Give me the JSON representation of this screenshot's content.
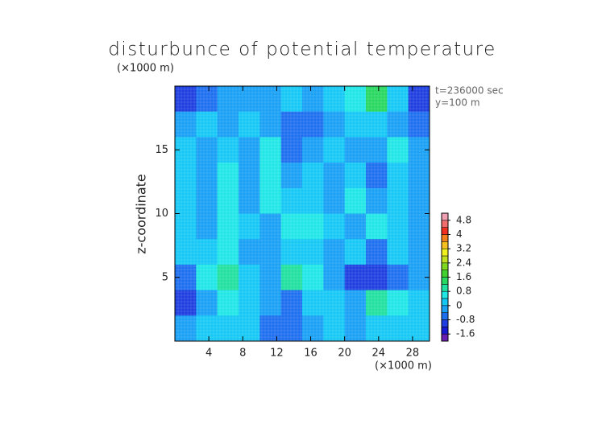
{
  "chart_data": {
    "type": "contour",
    "title": "disturbunce of potential temperature",
    "y_unit": "(×1000 m)",
    "x_unit": "(×1000 m)",
    "ylabel": "z-coordinate",
    "annotations": [
      "t=236000 sec",
      "y=100 m"
    ],
    "xlim": [
      0,
      30
    ],
    "ylim": [
      0,
      20
    ],
    "xticks": [
      4,
      8,
      12,
      16,
      20,
      24,
      28
    ],
    "yticks": [
      5,
      10,
      15
    ],
    "x": [
      1.25,
      3.75,
      6.25,
      8.75,
      11.25,
      13.75,
      16.25,
      18.75,
      21.25,
      23.75,
      26.25,
      28.75
    ],
    "y": [
      19,
      17,
      15,
      13,
      11,
      9,
      7,
      5,
      3,
      1
    ],
    "z": [
      [
        -0.9,
        -0.5,
        -0.3,
        -0.4,
        -0.3,
        0.2,
        -0.2,
        0.3,
        0.6,
        1.3,
        0.3,
        -0.9
      ],
      [
        -0.3,
        0.3,
        -0.3,
        0.2,
        -0.4,
        -0.5,
        -0.6,
        -0.3,
        0.3,
        0.2,
        -0.3,
        -0.5
      ],
      [
        0.2,
        -0.4,
        0.3,
        -0.3,
        0.4,
        -0.5,
        -0.3,
        0.3,
        -0.4,
        -0.2,
        0.4,
        -0.4
      ],
      [
        0.2,
        -0.4,
        0.4,
        -0.2,
        0.5,
        -0.4,
        0.3,
        -0.4,
        0.3,
        -0.5,
        0.3,
        -0.3
      ],
      [
        0.3,
        -0.3,
        0.5,
        -0.2,
        0.4,
        0.2,
        0.3,
        -0.3,
        0.5,
        -0.3,
        0.2,
        -0.3
      ],
      [
        0.2,
        -0.3,
        0.4,
        0.3,
        -0.2,
        0.4,
        0.5,
        0.3,
        -0.3,
        0.4,
        0.2,
        -0.2
      ],
      [
        0.3,
        0.3,
        0.4,
        -0.3,
        -0.4,
        0.3,
        0.3,
        -0.4,
        0.2,
        -0.5,
        0.3,
        -0.2
      ],
      [
        -0.6,
        0.4,
        0.9,
        0.3,
        -0.3,
        0.8,
        0.6,
        -0.3,
        -0.9,
        -1.2,
        -0.5,
        -0.2
      ],
      [
        -1.0,
        -0.4,
        0.4,
        0.3,
        -0.4,
        -0.5,
        0.3,
        0.2,
        -0.3,
        0.9,
        0.4,
        0.0
      ],
      [
        -0.3,
        0.2,
        0.3,
        0.1,
        -0.6,
        -0.7,
        -0.3,
        0.2,
        -0.3,
        0.3,
        0.2,
        0.2
      ]
    ],
    "colorbar": {
      "levels": [
        -2.0,
        -1.6,
        -1.2,
        -0.8,
        -0.4,
        0,
        0.4,
        0.8,
        1.2,
        1.6,
        2.0,
        2.4,
        2.8,
        3.2,
        3.6,
        4.0,
        4.4,
        4.8,
        5.2
      ],
      "colors": [
        "#6a1fb0",
        "#1a1ad0",
        "#1f3fe0",
        "#1e6ff0",
        "#1aa0f5",
        "#16c8f5",
        "#20e6e6",
        "#22e0a0",
        "#2ad860",
        "#40d030",
        "#80d820",
        "#c0e020",
        "#f0f020",
        "#f5c020",
        "#f58020",
        "#f03020",
        "#f07070",
        "#f0a0b0"
      ],
      "ticks": [
        4.8,
        4,
        3.2,
        2.4,
        1.6,
        0.8,
        0,
        -0.8,
        -1.6
      ]
    }
  }
}
